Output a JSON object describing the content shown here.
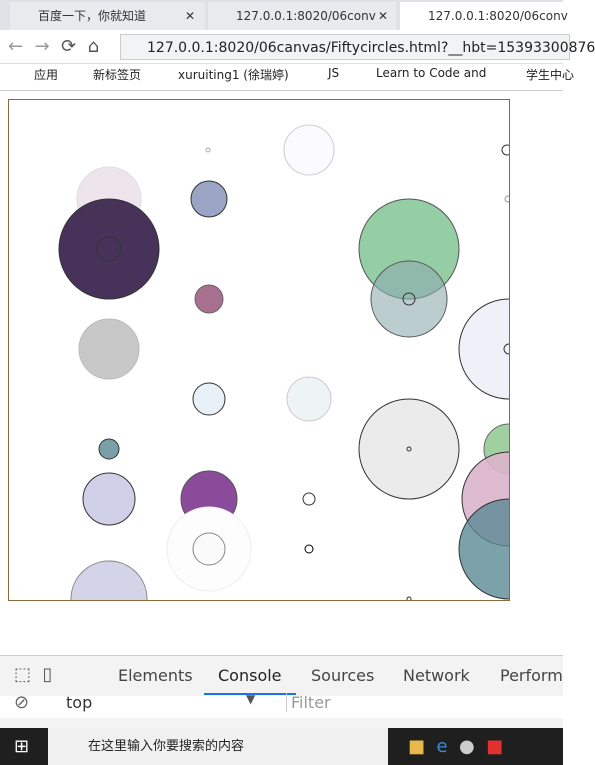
{
  "tabs": [
    "百度一下，你就知道",
    "127.0.0.1:8020/06conv",
    "127.0.0.1:8020/06conv"
  ],
  "address_bar": {
    "url": "127.0.0.1:8020/06canvas/Fiftycircles.html?__hbt=15393300876"
  },
  "bookmarks": [
    "应用",
    "新标签页",
    "xuruiting1 (徐瑞婷)",
    "JS",
    "Learn to Code and",
    "学生中心"
  ],
  "devtools": {
    "tabs": [
      "Elements",
      "Console",
      "Sources",
      "Network",
      "Perform"
    ],
    "context": "top",
    "filter": "Filter"
  },
  "taskbar": {
    "search": "在这里输入你要搜索的内容"
  }
}
